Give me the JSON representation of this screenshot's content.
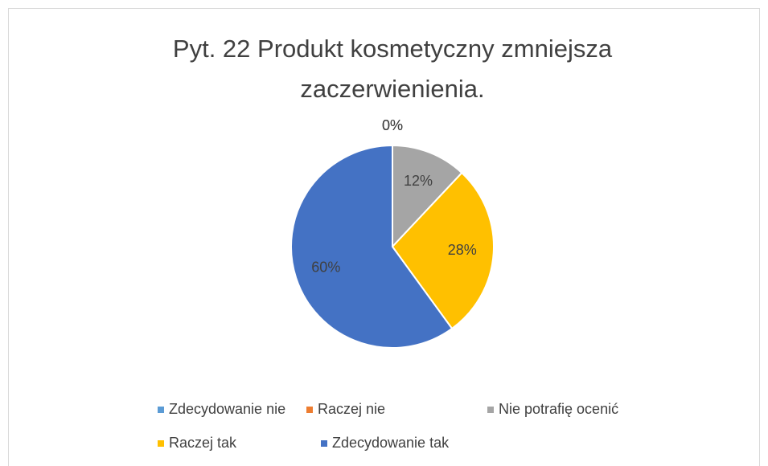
{
  "chart_data": {
    "type": "pie",
    "title": [
      "Pyt. 22 Produkt kosmetyczny zmniejsza",
      "zaczerwienienia."
    ],
    "categories": [
      "Zdecydowanie nie",
      "Raczej nie",
      "Nie potrafię ocenić",
      "Raczej tak",
      "Zdecydowanie tak"
    ],
    "values": [
      0,
      0,
      12,
      28,
      60
    ],
    "value_labels": [
      "0%",
      "0%",
      "12%",
      "28%",
      "60%"
    ],
    "colors": [
      "#5b9bd5",
      "#ed7d31",
      "#a5a5a5",
      "#ffc000",
      "#4472c4"
    ],
    "legend": "bottom"
  }
}
